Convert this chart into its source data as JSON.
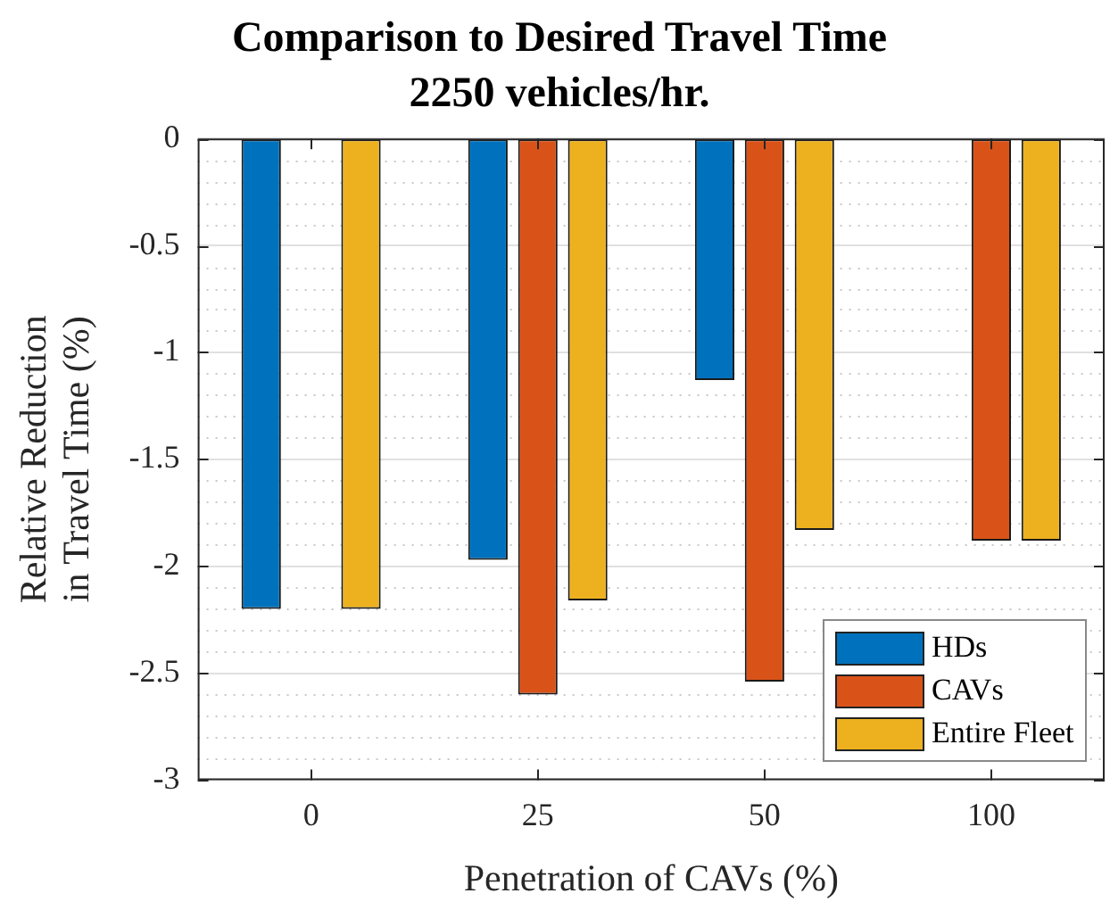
{
  "chart_data": {
    "type": "bar",
    "title": "Comparison to Desired Travel Time",
    "subtitle": "2250 vehicles/hr.",
    "xlabel": "Penetration of CAVs (%)",
    "ylabel": "Relative Reduction in Travel Time (%)",
    "categories": [
      "0",
      "25",
      "50",
      "100"
    ],
    "series": [
      {
        "name": "HDs",
        "color": "#0072bd",
        "values": [
          -2.2,
          -1.97,
          -1.13,
          null
        ]
      },
      {
        "name": "CAVs",
        "color": "#d95319",
        "values": [
          null,
          -2.6,
          -2.54,
          -1.88
        ]
      },
      {
        "name": "Entire Fleet",
        "color": "#edb120",
        "values": [
          -2.2,
          -2.16,
          -1.83,
          -1.88
        ]
      }
    ],
    "ylim": [
      -3,
      0
    ],
    "yticks": [
      -3,
      -2.5,
      -2,
      -1.5,
      -1,
      -0.5,
      0
    ],
    "grid": true,
    "legend": "bottom right"
  }
}
